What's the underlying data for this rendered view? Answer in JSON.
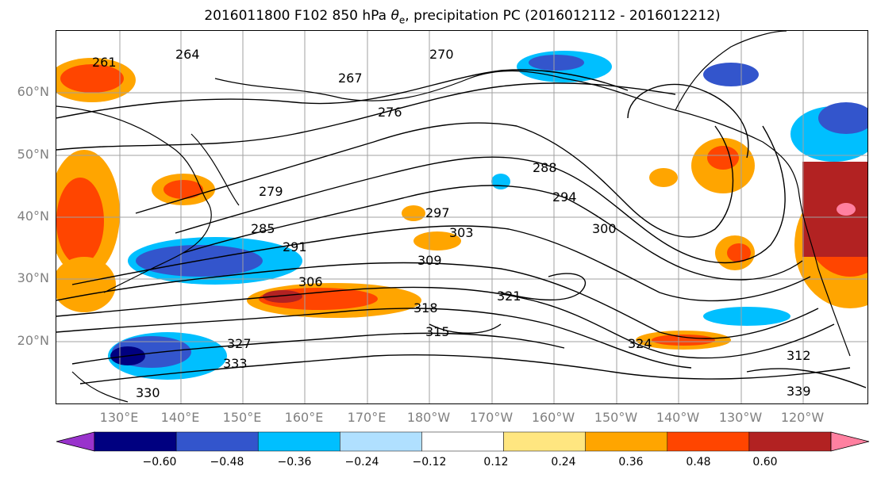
{
  "title": {
    "prefix": "2016011800 F102 850 hPa ",
    "symbol": "θ",
    "subscript": "e",
    "suffix": ", precipitation PC (2016012112 - 2016012212)"
  },
  "map": {
    "lat_labels": [
      "60°N",
      "50°N",
      "40°N",
      "30°N",
      "20°N"
    ],
    "lon_labels": [
      "130°E",
      "140°E",
      "150°E",
      "160°E",
      "170°E",
      "180°W",
      "170°W",
      "160°W",
      "150°W",
      "140°W",
      "130°W",
      "120°W"
    ],
    "contour_labels": [
      "261",
      "264",
      "267",
      "270",
      "276",
      "279",
      "285",
      "288",
      "291",
      "294",
      "297",
      "300",
      "303",
      "306",
      "309",
      "312",
      "315",
      "318",
      "321",
      "324",
      "327",
      "330",
      "333",
      "339"
    ],
    "colors": {
      "land_coast": "#000000",
      "contour": "#000000",
      "grid": "#a0a0a0"
    }
  },
  "colorbar": {
    "colors": [
      "#9933cc",
      "#000080",
      "#3355cc",
      "#00bfff",
      "#b0e0ff",
      "#ffffff",
      "#ffe680",
      "#ffa500",
      "#ff4500",
      "#b22222",
      "#ff80a0"
    ],
    "ticks": [
      "−0.60",
      "−0.48",
      "−0.36",
      "−0.24",
      "−0.12",
      "0.12",
      "0.24",
      "0.36",
      "0.48",
      "0.60"
    ]
  }
}
